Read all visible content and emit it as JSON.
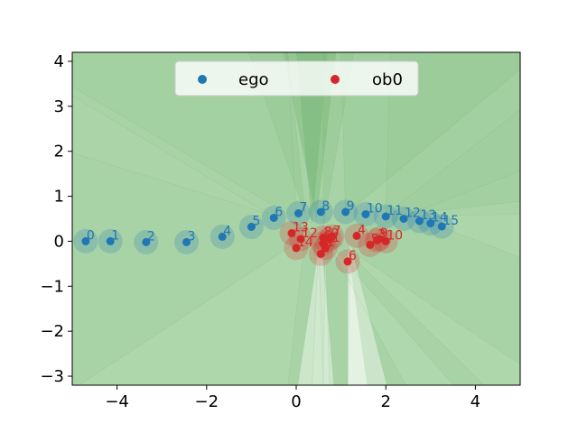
{
  "chart_data": {
    "type": "scatter",
    "title": "",
    "xlabel": "",
    "ylabel": "",
    "xlim": [
      -5,
      5
    ],
    "ylim": [
      -3.2,
      4.2
    ],
    "xticks": [
      -4,
      -2,
      0,
      2,
      4
    ],
    "yticks": [
      -3,
      -2,
      -1,
      0,
      1,
      2,
      3,
      4
    ],
    "xtick_labels": [
      "−4",
      "−2",
      "0",
      "2",
      "4"
    ],
    "ytick_labels": [
      "−3",
      "−2",
      "−1",
      "0",
      "1",
      "2",
      "3",
      "4"
    ],
    "grid": false,
    "legend": {
      "placement": "top-center",
      "columns": 2
    },
    "background_color": "#a8d3a6",
    "series": [
      {
        "name": "ego",
        "color": "#1f77b4",
        "labels": [
          "0",
          "1",
          "2",
          "3",
          "4",
          "5",
          "6",
          "7",
          "8",
          "9",
          "10",
          "11",
          "12",
          "13",
          "14",
          "15"
        ],
        "x": [
          -4.7,
          -4.15,
          -3.35,
          -2.45,
          -1.65,
          -1.0,
          -0.5,
          0.05,
          0.55,
          1.1,
          1.55,
          2.0,
          2.4,
          2.75,
          3.0,
          3.25
        ],
        "y": [
          0.0,
          0.0,
          -0.02,
          -0.02,
          0.1,
          0.32,
          0.52,
          0.62,
          0.65,
          0.65,
          0.6,
          0.55,
          0.5,
          0.45,
          0.4,
          0.33
        ]
      },
      {
        "name": "ob0",
        "color": "#d62728",
        "labels": [
          "0",
          "1",
          "2",
          "3",
          "4",
          "5",
          "6",
          "7",
          "8",
          "9",
          "10",
          "11",
          "12",
          "13",
          "14"
        ],
        "x": [
          0.75,
          0.65,
          0.55,
          1.8,
          1.35,
          1.65,
          1.15,
          0.8,
          0.6,
          1.85,
          2.0,
          0.6,
          0.1,
          -0.1,
          0.0
        ],
        "y": [
          0.05,
          -0.15,
          -0.28,
          0.02,
          0.12,
          -0.08,
          -0.45,
          0.1,
          0.08,
          0.05,
          0.0,
          -0.05,
          0.05,
          0.18,
          -0.15
        ]
      }
    ]
  }
}
